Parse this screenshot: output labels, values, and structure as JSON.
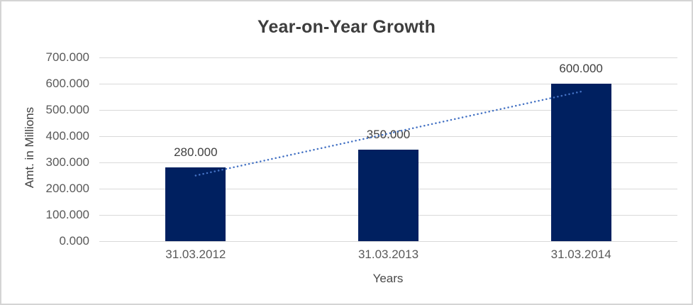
{
  "chart_data": {
    "type": "bar",
    "title": "Year-on-Year Growth",
    "xlabel": "Years",
    "ylabel": "Amt. in Millions",
    "categories": [
      "31.03.2012",
      "31.03.2013",
      "31.03.2014"
    ],
    "values": [
      280,
      350,
      600
    ],
    "value_labels": [
      "280.000",
      "350.000",
      "600.000"
    ],
    "ylim": [
      0,
      700
    ],
    "ytick_step": 100,
    "ytick_labels": [
      "0.000",
      "100.000",
      "200.000",
      "300.000",
      "400.000",
      "500.000",
      "600.000",
      "700.000"
    ],
    "grid": true,
    "legend": "none",
    "colors": {
      "bar": "#002060",
      "gridline": "#d9d9d9",
      "trendline": "#4472c4",
      "title_text": "#3d3d3d",
      "axis_text": "#595959",
      "data_label_text": "#404040",
      "frame_border": "#d4d4d4"
    },
    "trendline": {
      "style": "dotted",
      "color": "#4472c4",
      "start_category_index": 0,
      "end_category_index": 2,
      "start_value": 250,
      "end_value": 570
    }
  }
}
